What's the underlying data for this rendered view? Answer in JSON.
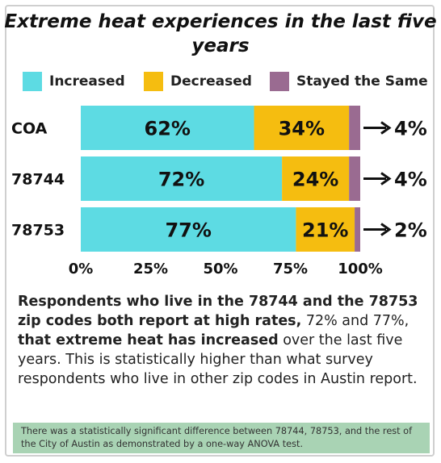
{
  "chart_data": {
    "type": "bar",
    "orientation": "horizontal",
    "stacked": true,
    "title": "Extreme heat experiences in the last five years",
    "categories": [
      "COA",
      "78744",
      "78753"
    ],
    "series": [
      {
        "name": "Increased",
        "color": "#5ddbe3",
        "values": [
          62,
          72,
          77
        ],
        "labels": [
          "62%",
          "72%",
          "77%"
        ]
      },
      {
        "name": "Decreased",
        "color": "#f5bd10",
        "values": [
          34,
          24,
          21
        ],
        "labels": [
          "34%",
          "24%",
          "21%"
        ]
      },
      {
        "name": "Stayed the Same",
        "color": "#9a6b91",
        "values": [
          4,
          4,
          2
        ],
        "labels": [
          "4%",
          "4%",
          "2%"
        ]
      }
    ],
    "xticks": [
      "0%",
      "25%",
      "50%",
      "75%",
      "100%"
    ],
    "xlim": [
      0,
      100
    ],
    "legend": "top",
    "grid": false
  },
  "summary": {
    "bold_part1": "Respondents who live in the 78744 and the 78753 zip codes both report at high rates,",
    "normal_part1": " 72% and 77%, ",
    "bold_part2": "that extreme heat has increased",
    "normal_part2": " over the last five years. This is statistically higher than what survey respondents who live in other zip codes in Austin report."
  },
  "footnote": "There was a statistically significant difference between 78744, 78753, and the rest of the City of Austin as demonstrated by a one-way ANOVA test."
}
